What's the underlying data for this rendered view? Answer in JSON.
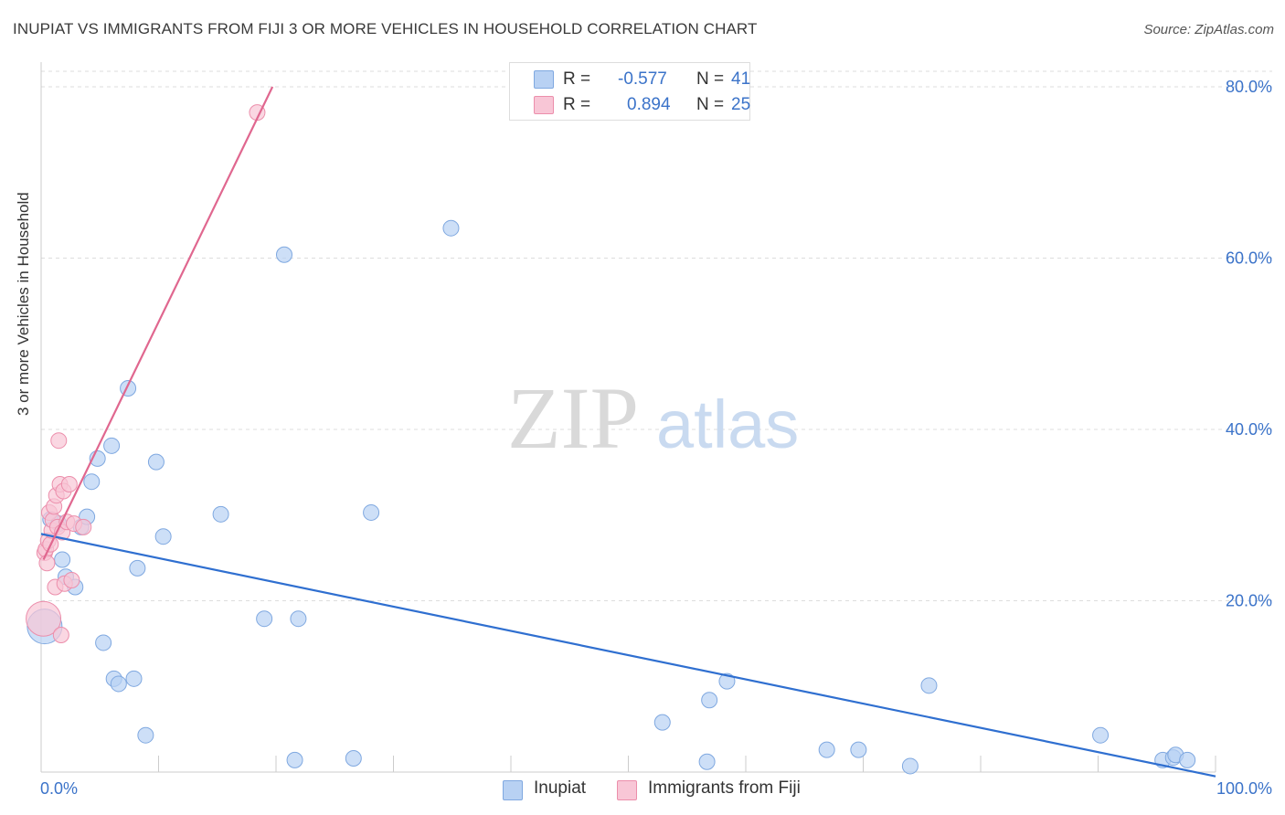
{
  "title": "INUPIAT VS IMMIGRANTS FROM FIJI 3 OR MORE VEHICLES IN HOUSEHOLD CORRELATION CHART",
  "source": "Source: ZipAtlas.com",
  "watermark": {
    "zip": "ZIP",
    "atlas": "atlas"
  },
  "colors": {
    "blue_fill": "#b8d1f3",
    "blue_stroke": "#7fa8e0",
    "blue_line": "#2f6fd0",
    "pink_fill": "#f8c6d6",
    "pink_stroke": "#ec8eab",
    "pink_line": "#e0678f",
    "tick_label": "#3b73c9",
    "grid": "#dddddd"
  },
  "stats": {
    "rows": [
      {
        "r_label": "R =",
        "r_value": "-0.577",
        "n_label": "N =",
        "n_value": "41",
        "color": "#b8d1f3",
        "stroke": "#7fa8e0"
      },
      {
        "r_label": "R =",
        "r_value": "0.894",
        "n_label": "N =",
        "n_value": "25",
        "color": "#f8c6d6",
        "stroke": "#ec8eab"
      }
    ]
  },
  "legend": {
    "items": [
      {
        "label": "Inupiat",
        "color": "#b8d1f3",
        "stroke": "#7fa8e0"
      },
      {
        "label": "Immigrants from Fiji",
        "color": "#f8c6d6",
        "stroke": "#ec8eab"
      }
    ]
  },
  "chart_data": {
    "type": "scatter",
    "title": "INUPIAT VS IMMIGRANTS FROM FIJI 3 OR MORE VEHICLES IN HOUSEHOLD CORRELATION CHART",
    "xlabel": "",
    "ylabel": "3 or more Vehicles in Household",
    "xlim": [
      0,
      100
    ],
    "ylim": [
      0,
      80
    ],
    "x_tick_labels": [
      "0.0%",
      "100.0%"
    ],
    "y_ticks": [
      {
        "value": 20,
        "label": "20.0%"
      },
      {
        "value": 40,
        "label": "40.0%"
      },
      {
        "value": 60,
        "label": "60.0%"
      },
      {
        "value": 80,
        "label": "80.0%"
      }
    ],
    "grid": true,
    "legend_position": "bottom-center",
    "series": [
      {
        "name": "Inupiat",
        "color": "#b8d1f3",
        "r": -0.577,
        "n": 41,
        "trend": {
          "x": [
            0,
            100
          ],
          "y": [
            27.8,
            -0.5
          ]
        },
        "points": [
          {
            "x": 0.3,
            "y": 17.0,
            "big": true
          },
          {
            "x": 0.8,
            "y": 29.5
          },
          {
            "x": 1.5,
            "y": 29.0
          },
          {
            "x": 1.8,
            "y": 24.8
          },
          {
            "x": 2.1,
            "y": 22.8
          },
          {
            "x": 2.9,
            "y": 21.6
          },
          {
            "x": 3.4,
            "y": 28.6
          },
          {
            "x": 3.9,
            "y": 29.8
          },
          {
            "x": 4.3,
            "y": 33.9
          },
          {
            "x": 4.8,
            "y": 36.6
          },
          {
            "x": 5.3,
            "y": 15.1
          },
          {
            "x": 6.0,
            "y": 38.1
          },
          {
            "x": 6.2,
            "y": 10.9
          },
          {
            "x": 6.6,
            "y": 10.3
          },
          {
            "x": 7.4,
            "y": 44.8
          },
          {
            "x": 7.9,
            "y": 10.9
          },
          {
            "x": 8.2,
            "y": 23.8
          },
          {
            "x": 8.9,
            "y": 4.3
          },
          {
            "x": 9.8,
            "y": 36.2
          },
          {
            "x": 10.4,
            "y": 27.5
          },
          {
            "x": 15.3,
            "y": 30.1
          },
          {
            "x": 19.0,
            "y": 17.9
          },
          {
            "x": 20.7,
            "y": 60.4
          },
          {
            "x": 21.6,
            "y": 1.4
          },
          {
            "x": 21.9,
            "y": 17.9
          },
          {
            "x": 26.6,
            "y": 1.6
          },
          {
            "x": 28.1,
            "y": 30.3
          },
          {
            "x": 34.9,
            "y": 63.5
          },
          {
            "x": 52.9,
            "y": 5.8
          },
          {
            "x": 56.7,
            "y": 1.2
          },
          {
            "x": 56.9,
            "y": 8.4
          },
          {
            "x": 58.4,
            "y": 10.6
          },
          {
            "x": 66.9,
            "y": 2.6
          },
          {
            "x": 69.6,
            "y": 2.6
          },
          {
            "x": 74.0,
            "y": 0.7
          },
          {
            "x": 75.6,
            "y": 10.1
          },
          {
            "x": 90.2,
            "y": 4.3
          },
          {
            "x": 95.5,
            "y": 1.4
          },
          {
            "x": 96.4,
            "y": 1.7
          },
          {
            "x": 96.6,
            "y": 2.0
          },
          {
            "x": 97.6,
            "y": 1.4
          }
        ]
      },
      {
        "name": "Immigrants from Fiji",
        "color": "#f8c6d6",
        "r": 0.894,
        "n": 25,
        "trend": {
          "x": [
            0.2,
            19.7
          ],
          "y": [
            24.8,
            80.0
          ]
        },
        "points": [
          {
            "x": 0.2,
            "y": 17.9,
            "big": true
          },
          {
            "x": 0.3,
            "y": 25.6
          },
          {
            "x": 0.4,
            "y": 26.0
          },
          {
            "x": 0.5,
            "y": 24.4
          },
          {
            "x": 0.6,
            "y": 27.0
          },
          {
            "x": 0.7,
            "y": 30.3
          },
          {
            "x": 0.8,
            "y": 26.6
          },
          {
            "x": 0.9,
            "y": 28.2
          },
          {
            "x": 1.0,
            "y": 29.4
          },
          {
            "x": 1.1,
            "y": 31.0
          },
          {
            "x": 1.2,
            "y": 21.6
          },
          {
            "x": 1.3,
            "y": 32.3
          },
          {
            "x": 1.4,
            "y": 28.6
          },
          {
            "x": 1.5,
            "y": 38.7
          },
          {
            "x": 1.6,
            "y": 33.6
          },
          {
            "x": 1.7,
            "y": 16.0
          },
          {
            "x": 1.8,
            "y": 28.0
          },
          {
            "x": 1.9,
            "y": 32.8
          },
          {
            "x": 2.0,
            "y": 22.0
          },
          {
            "x": 2.2,
            "y": 29.2
          },
          {
            "x": 2.4,
            "y": 33.6
          },
          {
            "x": 2.6,
            "y": 22.4
          },
          {
            "x": 2.8,
            "y": 29.0
          },
          {
            "x": 3.6,
            "y": 28.6
          },
          {
            "x": 18.4,
            "y": 77.0
          }
        ]
      }
    ]
  }
}
